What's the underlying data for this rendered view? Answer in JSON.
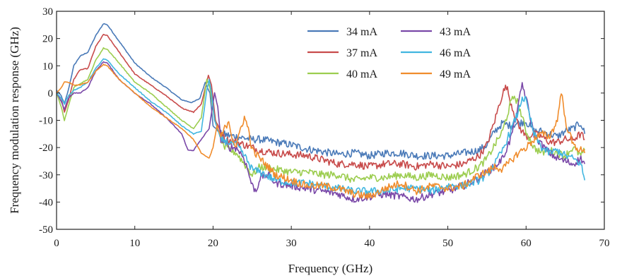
{
  "chart_data": {
    "type": "line",
    "title": "",
    "xlabel": "Frequency (GHz)",
    "ylabel": "Frequency modulation response (GHz)",
    "xlim": [
      0,
      70
    ],
    "ylim": [
      -50,
      30
    ],
    "xticks": [
      0,
      10,
      20,
      30,
      40,
      50,
      60,
      70
    ],
    "yticks": [
      -50,
      -40,
      -30,
      -20,
      -10,
      0,
      10,
      20,
      30
    ],
    "grid": false,
    "legend_position": "top-center",
    "series": [
      {
        "name": "34 mA",
        "color": "#4a7ab8",
        "points": [
          [
            0,
            1
          ],
          [
            0.6,
            -1
          ],
          [
            1,
            -4
          ],
          [
            1.5,
            1
          ],
          [
            2.2,
            10
          ],
          [
            3,
            13.5
          ],
          [
            4,
            15
          ],
          [
            5,
            21
          ],
          [
            6,
            25.5
          ],
          [
            6.5,
            25
          ],
          [
            8,
            19
          ],
          [
            10,
            11
          ],
          [
            12,
            6
          ],
          [
            14,
            2
          ],
          [
            16,
            -2.5
          ],
          [
            17.3,
            -3.5
          ],
          [
            18.3,
            -2
          ],
          [
            19,
            4
          ],
          [
            19.6,
            0
          ],
          [
            20,
            -12
          ],
          [
            21,
            -15
          ],
          [
            23,
            -16
          ],
          [
            25,
            -17
          ],
          [
            26,
            -17
          ],
          [
            28,
            -18
          ],
          [
            30,
            -19
          ],
          [
            32,
            -20.5
          ],
          [
            34,
            -21.5
          ],
          [
            36,
            -22.5
          ],
          [
            38,
            -22
          ],
          [
            40,
            -23
          ],
          [
            42,
            -22
          ],
          [
            44,
            -22
          ],
          [
            46,
            -23
          ],
          [
            48,
            -23
          ],
          [
            50,
            -23
          ],
          [
            52,
            -22
          ],
          [
            54,
            -21
          ],
          [
            55,
            -19
          ],
          [
            56,
            -14
          ],
          [
            57,
            -11
          ],
          [
            58,
            -12
          ],
          [
            59,
            -11
          ],
          [
            60,
            -10.5
          ],
          [
            61,
            -14
          ],
          [
            62,
            -14
          ],
          [
            63,
            -15
          ],
          [
            64,
            -16
          ],
          [
            65,
            -14
          ],
          [
            66,
            -13
          ],
          [
            67,
            -11
          ],
          [
            67.5,
            -15
          ]
        ]
      },
      {
        "name": "37 mA",
        "color": "#c84b4b",
        "points": [
          [
            0,
            0
          ],
          [
            0.6,
            -2
          ],
          [
            1,
            -7
          ],
          [
            1.5,
            -3
          ],
          [
            2.2,
            5
          ],
          [
            3,
            8.5
          ],
          [
            4,
            9
          ],
          [
            5,
            17
          ],
          [
            6,
            21.5
          ],
          [
            6.5,
            21
          ],
          [
            8,
            15
          ],
          [
            10,
            7
          ],
          [
            12,
            3
          ],
          [
            14,
            -1
          ],
          [
            16,
            -5.5
          ],
          [
            17.5,
            -7
          ],
          [
            18.5,
            -4
          ],
          [
            19.4,
            6.5
          ],
          [
            19.8,
            3
          ],
          [
            20.3,
            -10
          ],
          [
            21.5,
            -17
          ],
          [
            23,
            -18
          ],
          [
            25,
            -20
          ],
          [
            26,
            -21
          ],
          [
            28,
            -22
          ],
          [
            30,
            -22.5
          ],
          [
            32,
            -23
          ],
          [
            34,
            -24.5
          ],
          [
            36,
            -26
          ],
          [
            38,
            -26
          ],
          [
            40,
            -27
          ],
          [
            42,
            -26
          ],
          [
            44,
            -26
          ],
          [
            46,
            -27
          ],
          [
            48,
            -26
          ],
          [
            50,
            -27
          ],
          [
            52,
            -26
          ],
          [
            54,
            -23
          ],
          [
            55,
            -19
          ],
          [
            56,
            -10
          ],
          [
            57,
            0
          ],
          [
            57.5,
            2.5
          ],
          [
            58,
            -3
          ],
          [
            59,
            -12
          ],
          [
            60,
            -16
          ],
          [
            61,
            -15
          ],
          [
            62,
            -16
          ],
          [
            63,
            -18
          ],
          [
            64,
            -18
          ],
          [
            65,
            -17
          ],
          [
            66,
            -17
          ],
          [
            67,
            -15
          ],
          [
            67.5,
            -17
          ]
        ]
      },
      {
        "name": "40 mA",
        "color": "#9ccd4f",
        "points": [
          [
            0,
            0
          ],
          [
            0.6,
            -5
          ],
          [
            1,
            -10
          ],
          [
            1.5,
            -5
          ],
          [
            2.2,
            2
          ],
          [
            3,
            3.5
          ],
          [
            4,
            5
          ],
          [
            5,
            12
          ],
          [
            6,
            16.5
          ],
          [
            6.5,
            16
          ],
          [
            8,
            11
          ],
          [
            10,
            4
          ],
          [
            12,
            0
          ],
          [
            14,
            -5
          ],
          [
            16,
            -10
          ],
          [
            17.5,
            -13
          ],
          [
            18.5,
            -9
          ],
          [
            19.2,
            5
          ],
          [
            19.6,
            2
          ],
          [
            20.2,
            -10
          ],
          [
            21.5,
            -20
          ],
          [
            23,
            -22
          ],
          [
            24,
            -26
          ],
          [
            25,
            -30
          ],
          [
            26,
            -27
          ],
          [
            28,
            -28
          ],
          [
            30,
            -29
          ],
          [
            32,
            -29
          ],
          [
            34,
            -30
          ],
          [
            36,
            -30
          ],
          [
            38,
            -32
          ],
          [
            40,
            -31
          ],
          [
            42,
            -31
          ],
          [
            44,
            -30
          ],
          [
            46,
            -31
          ],
          [
            48,
            -30
          ],
          [
            50,
            -31
          ],
          [
            52,
            -30
          ],
          [
            54,
            -27
          ],
          [
            55,
            -24
          ],
          [
            56,
            -19
          ],
          [
            57,
            -14
          ],
          [
            58,
            -4
          ],
          [
            58.5,
            -1
          ],
          [
            59,
            -4
          ],
          [
            60,
            -14
          ],
          [
            61,
            -20
          ],
          [
            62,
            -22
          ],
          [
            63,
            -21
          ],
          [
            64,
            -22
          ],
          [
            65,
            -23
          ],
          [
            66,
            -20
          ],
          [
            67,
            -23
          ],
          [
            67.5,
            -21
          ]
        ]
      },
      {
        "name": "43 mA",
        "color": "#7a48a8",
        "points": [
          [
            0,
            0
          ],
          [
            0.6,
            -3
          ],
          [
            1,
            -6
          ],
          [
            1.5,
            -2
          ],
          [
            2.2,
            0
          ],
          [
            3,
            0
          ],
          [
            4,
            2
          ],
          [
            5,
            8
          ],
          [
            6,
            11.5
          ],
          [
            6.5,
            11
          ],
          [
            8,
            5
          ],
          [
            10,
            0
          ],
          [
            12,
            -4
          ],
          [
            14,
            -9
          ],
          [
            16,
            -15
          ],
          [
            16.8,
            -21
          ],
          [
            17.5,
            -21
          ],
          [
            18.5,
            -17
          ],
          [
            19.5,
            -13
          ],
          [
            20.2,
            0
          ],
          [
            20.6,
            -5
          ],
          [
            21,
            -17
          ],
          [
            22,
            -20
          ],
          [
            23,
            -20
          ],
          [
            24,
            -24
          ],
          [
            25,
            -34
          ],
          [
            25.5,
            -36
          ],
          [
            26,
            -31
          ],
          [
            27,
            -30
          ],
          [
            28,
            -33
          ],
          [
            30,
            -34
          ],
          [
            32,
            -35
          ],
          [
            34,
            -36
          ],
          [
            36,
            -37
          ],
          [
            38,
            -39
          ],
          [
            40,
            -38
          ],
          [
            42,
            -37
          ],
          [
            44,
            -38
          ],
          [
            46,
            -39
          ],
          [
            48,
            -37
          ],
          [
            50,
            -36
          ],
          [
            52,
            -34
          ],
          [
            54,
            -31
          ],
          [
            55,
            -29
          ],
          [
            56,
            -27
          ],
          [
            57,
            -24
          ],
          [
            58,
            -17
          ],
          [
            59,
            -5
          ],
          [
            59.5,
            3.5
          ],
          [
            60,
            -2
          ],
          [
            61,
            -15
          ],
          [
            62,
            -19
          ],
          [
            63,
            -22
          ],
          [
            64,
            -24
          ],
          [
            65,
            -25
          ],
          [
            66,
            -26
          ],
          [
            67,
            -24
          ],
          [
            67.5,
            -26
          ]
        ]
      },
      {
        "name": "46 mA",
        "color": "#41b6e0",
        "points": [
          [
            0,
            0
          ],
          [
            0.6,
            -2
          ],
          [
            1,
            -4
          ],
          [
            1.5,
            -1
          ],
          [
            2.2,
            1
          ],
          [
            3,
            2
          ],
          [
            4,
            4
          ],
          [
            5,
            9
          ],
          [
            6,
            12.5
          ],
          [
            6.5,
            12
          ],
          [
            8,
            7
          ],
          [
            10,
            2
          ],
          [
            12,
            -3
          ],
          [
            14,
            -7
          ],
          [
            16,
            -12
          ],
          [
            17.5,
            -15
          ],
          [
            18.5,
            -14
          ],
          [
            19.2,
            1
          ],
          [
            19.5,
            5
          ],
          [
            19.8,
            0
          ],
          [
            20.2,
            -10
          ],
          [
            21,
            -17
          ],
          [
            22,
            -18
          ],
          [
            23,
            -19
          ],
          [
            24,
            -23
          ],
          [
            25,
            -28
          ],
          [
            26,
            -29
          ],
          [
            28,
            -32
          ],
          [
            30,
            -33
          ],
          [
            32,
            -33
          ],
          [
            34,
            -34
          ],
          [
            36,
            -35
          ],
          [
            38,
            -36
          ],
          [
            40,
            -36
          ],
          [
            42,
            -36
          ],
          [
            44,
            -35
          ],
          [
            46,
            -35
          ],
          [
            48,
            -36
          ],
          [
            50,
            -34
          ],
          [
            52,
            -34
          ],
          [
            54,
            -32
          ],
          [
            55,
            -30
          ],
          [
            56,
            -26
          ],
          [
            57,
            -21
          ],
          [
            58,
            -14
          ],
          [
            59,
            -7
          ],
          [
            59.5,
            -1.5
          ],
          [
            60,
            -3
          ],
          [
            61,
            -15
          ],
          [
            62,
            -20
          ],
          [
            63,
            -22
          ],
          [
            64,
            -21
          ],
          [
            65,
            -23
          ],
          [
            66,
            -24
          ],
          [
            67,
            -26
          ],
          [
            67.5,
            -32
          ]
        ]
      },
      {
        "name": "49 mA",
        "color": "#f08c2c",
        "points": [
          [
            0,
            0
          ],
          [
            0.6,
            2
          ],
          [
            1,
            4
          ],
          [
            1.5,
            4
          ],
          [
            2.2,
            3
          ],
          [
            3,
            3
          ],
          [
            4,
            4
          ],
          [
            5,
            8
          ],
          [
            6,
            10.5
          ],
          [
            6.5,
            10
          ],
          [
            8,
            5
          ],
          [
            10,
            0
          ],
          [
            12,
            -5
          ],
          [
            14,
            -9
          ],
          [
            16,
            -13
          ],
          [
            17.5,
            -17
          ],
          [
            18.5,
            -22
          ],
          [
            19.5,
            -24
          ],
          [
            20,
            -20
          ],
          [
            20.5,
            -12
          ],
          [
            21,
            -16
          ],
          [
            22,
            -10
          ],
          [
            22.5,
            -17
          ],
          [
            23,
            -20
          ],
          [
            23.5,
            -13
          ],
          [
            24,
            -9
          ],
          [
            24.5,
            -13
          ],
          [
            25,
            -21
          ],
          [
            26,
            -24
          ],
          [
            28,
            -30
          ],
          [
            30,
            -32
          ],
          [
            32,
            -34
          ],
          [
            34,
            -34
          ],
          [
            36,
            -35
          ],
          [
            38,
            -37
          ],
          [
            40,
            -38
          ],
          [
            42,
            -35
          ],
          [
            44,
            -33
          ],
          [
            46,
            -36
          ],
          [
            48,
            -34
          ],
          [
            50,
            -35
          ],
          [
            52,
            -34
          ],
          [
            54,
            -30
          ],
          [
            55,
            -29
          ],
          [
            56,
            -27
          ],
          [
            57,
            -28
          ],
          [
            58,
            -25
          ],
          [
            59,
            -22
          ],
          [
            60,
            -20
          ],
          [
            61,
            -17
          ],
          [
            62,
            -15
          ],
          [
            63,
            -16
          ],
          [
            64,
            -10
          ],
          [
            64.5,
            1
          ],
          [
            65,
            -10
          ],
          [
            66,
            -19
          ],
          [
            67,
            -21
          ],
          [
            67.5,
            -22
          ]
        ]
      }
    ]
  }
}
